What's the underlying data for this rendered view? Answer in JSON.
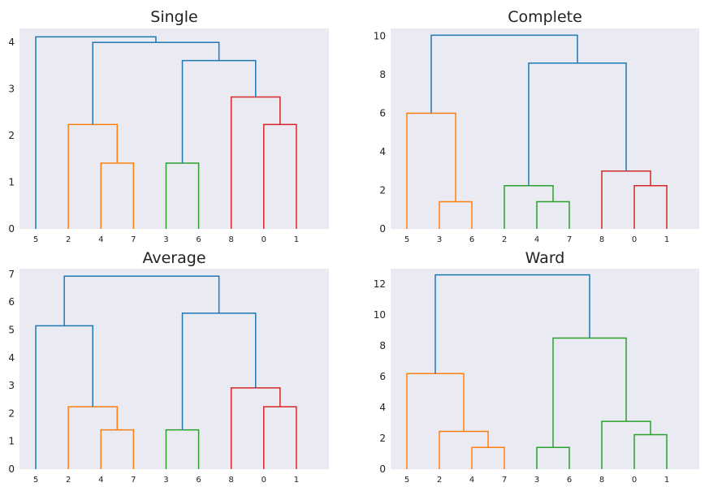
{
  "colors": {
    "background": "#eaeaf2",
    "above_threshold": "#1f77b4",
    "c1": "#ff7f0e",
    "c2": "#2ca02c",
    "c3": "#d62728"
  },
  "chart_data": [
    {
      "type": "dendrogram",
      "title": "Single",
      "leaves": [
        "5",
        "2",
        "4",
        "7",
        "3",
        "6",
        "8",
        "0",
        "1"
      ],
      "yticks": [
        0,
        1,
        2,
        3,
        4
      ],
      "ylim": [
        0,
        4.3
      ],
      "merges": [
        {
          "a": [
            "leaf",
            2
          ],
          "b": [
            "leaf",
            3
          ],
          "height": 1.41,
          "color": "c1"
        },
        {
          "a": [
            "leaf",
            1
          ],
          "b": [
            "merge",
            0
          ],
          "height": 2.24,
          "color": "c1"
        },
        {
          "a": [
            "leaf",
            4
          ],
          "b": [
            "leaf",
            5
          ],
          "height": 1.41,
          "color": "c2"
        },
        {
          "a": [
            "leaf",
            7
          ],
          "b": [
            "leaf",
            8
          ],
          "height": 2.24,
          "color": "c3"
        },
        {
          "a": [
            "leaf",
            6
          ],
          "b": [
            "merge",
            3
          ],
          "height": 2.83,
          "color": "c3"
        },
        {
          "a": [
            "merge",
            2
          ],
          "b": [
            "merge",
            4
          ],
          "height": 3.61,
          "color": "above_threshold"
        },
        {
          "a": [
            "merge",
            1
          ],
          "b": [
            "merge",
            5
          ],
          "height": 4.0,
          "color": "above_threshold"
        },
        {
          "a": [
            "leaf",
            0
          ],
          "b": [
            "merge",
            6
          ],
          "height": 4.12,
          "color": "above_threshold"
        }
      ]
    },
    {
      "type": "dendrogram",
      "title": "Complete",
      "leaves": [
        "5",
        "3",
        "6",
        "2",
        "4",
        "7",
        "8",
        "0",
        "1"
      ],
      "yticks": [
        0,
        2,
        4,
        6,
        8,
        10
      ],
      "ylim": [
        0,
        10.4
      ],
      "merges": [
        {
          "a": [
            "leaf",
            1
          ],
          "b": [
            "leaf",
            2
          ],
          "height": 1.41,
          "color": "c1"
        },
        {
          "a": [
            "leaf",
            0
          ],
          "b": [
            "merge",
            0
          ],
          "height": 6.0,
          "color": "c1"
        },
        {
          "a": [
            "leaf",
            4
          ],
          "b": [
            "leaf",
            5
          ],
          "height": 1.41,
          "color": "c2"
        },
        {
          "a": [
            "leaf",
            3
          ],
          "b": [
            "merge",
            2
          ],
          "height": 2.24,
          "color": "c2"
        },
        {
          "a": [
            "leaf",
            7
          ],
          "b": [
            "leaf",
            8
          ],
          "height": 2.24,
          "color": "c3"
        },
        {
          "a": [
            "leaf",
            6
          ],
          "b": [
            "merge",
            4
          ],
          "height": 3.0,
          "color": "c3"
        },
        {
          "a": [
            "merge",
            3
          ],
          "b": [
            "merge",
            5
          ],
          "height": 8.6,
          "color": "above_threshold"
        },
        {
          "a": [
            "merge",
            1
          ],
          "b": [
            "merge",
            6
          ],
          "height": 10.05,
          "color": "above_threshold"
        }
      ]
    },
    {
      "type": "dendrogram",
      "title": "Average",
      "leaves": [
        "5",
        "2",
        "4",
        "7",
        "3",
        "6",
        "8",
        "0",
        "1"
      ],
      "yticks": [
        0,
        1,
        2,
        3,
        4,
        5,
        6,
        7
      ],
      "ylim": [
        0,
        7.2
      ],
      "merges": [
        {
          "a": [
            "leaf",
            2
          ],
          "b": [
            "leaf",
            3
          ],
          "height": 1.41,
          "color": "c1"
        },
        {
          "a": [
            "leaf",
            1
          ],
          "b": [
            "merge",
            0
          ],
          "height": 2.24,
          "color": "c1"
        },
        {
          "a": [
            "leaf",
            0
          ],
          "b": [
            "merge",
            1
          ],
          "height": 5.15,
          "color": "above_threshold"
        },
        {
          "a": [
            "leaf",
            4
          ],
          "b": [
            "leaf",
            5
          ],
          "height": 1.41,
          "color": "c2"
        },
        {
          "a": [
            "leaf",
            7
          ],
          "b": [
            "leaf",
            8
          ],
          "height": 2.24,
          "color": "c3"
        },
        {
          "a": [
            "leaf",
            6
          ],
          "b": [
            "merge",
            4
          ],
          "height": 2.92,
          "color": "c3"
        },
        {
          "a": [
            "merge",
            3
          ],
          "b": [
            "merge",
            5
          ],
          "height": 5.6,
          "color": "above_threshold"
        },
        {
          "a": [
            "merge",
            2
          ],
          "b": [
            "merge",
            6
          ],
          "height": 6.93,
          "color": "above_threshold"
        }
      ]
    },
    {
      "type": "dendrogram",
      "title": "Ward",
      "leaves": [
        "5",
        "2",
        "4",
        "7",
        "3",
        "6",
        "8",
        "0",
        "1"
      ],
      "yticks": [
        0,
        2,
        4,
        6,
        8,
        10,
        12
      ],
      "ylim": [
        0,
        13.0
      ],
      "merges": [
        {
          "a": [
            "leaf",
            2
          ],
          "b": [
            "leaf",
            3
          ],
          "height": 1.41,
          "color": "c1"
        },
        {
          "a": [
            "leaf",
            1
          ],
          "b": [
            "merge",
            0
          ],
          "height": 2.45,
          "color": "c1"
        },
        {
          "a": [
            "leaf",
            0
          ],
          "b": [
            "merge",
            1
          ],
          "height": 6.2,
          "color": "c1"
        },
        {
          "a": [
            "leaf",
            4
          ],
          "b": [
            "leaf",
            5
          ],
          "height": 1.41,
          "color": "c2"
        },
        {
          "a": [
            "leaf",
            7
          ],
          "b": [
            "leaf",
            8
          ],
          "height": 2.24,
          "color": "c2"
        },
        {
          "a": [
            "leaf",
            6
          ],
          "b": [
            "merge",
            4
          ],
          "height": 3.1,
          "color": "c2"
        },
        {
          "a": [
            "merge",
            3
          ],
          "b": [
            "merge",
            5
          ],
          "height": 8.5,
          "color": "c2"
        },
        {
          "a": [
            "merge",
            2
          ],
          "b": [
            "merge",
            6
          ],
          "height": 12.6,
          "color": "above_threshold"
        }
      ]
    }
  ]
}
